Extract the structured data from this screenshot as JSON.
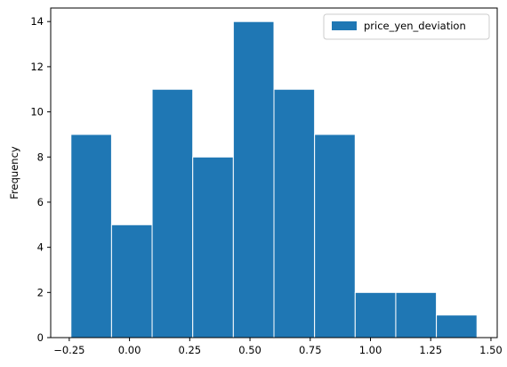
{
  "chart_data": {
    "type": "bar",
    "title": "",
    "xlabel": "",
    "ylabel": "Frequency",
    "bin_edges": [
      -0.243,
      -0.0745,
      0.094,
      0.2625,
      0.431,
      0.5995,
      0.768,
      0.9365,
      1.105,
      1.2735,
      1.442
    ],
    "series": [
      {
        "name": "price_yen_deviation",
        "color": "#1f77b4",
        "values": [
          9,
          5,
          11,
          8,
          14,
          11,
          9,
          2,
          2,
          1
        ]
      }
    ],
    "xlim": [
      -0.327,
      1.526
    ],
    "ylim": [
      0,
      14.6
    ],
    "xticks": [
      -0.25,
      0.0,
      0.25,
      0.5,
      0.75,
      1.0,
      1.25,
      1.5
    ],
    "xtick_labels": [
      "−0.25",
      "0.00",
      "0.25",
      "0.50",
      "0.75",
      "1.00",
      "1.25",
      "1.50"
    ],
    "yticks": [
      0,
      2,
      4,
      6,
      8,
      10,
      12,
      14
    ],
    "ytick_labels": [
      "0",
      "2",
      "4",
      "6",
      "8",
      "10",
      "12",
      "14"
    ],
    "grid": false,
    "legend_position": "top-right"
  }
}
